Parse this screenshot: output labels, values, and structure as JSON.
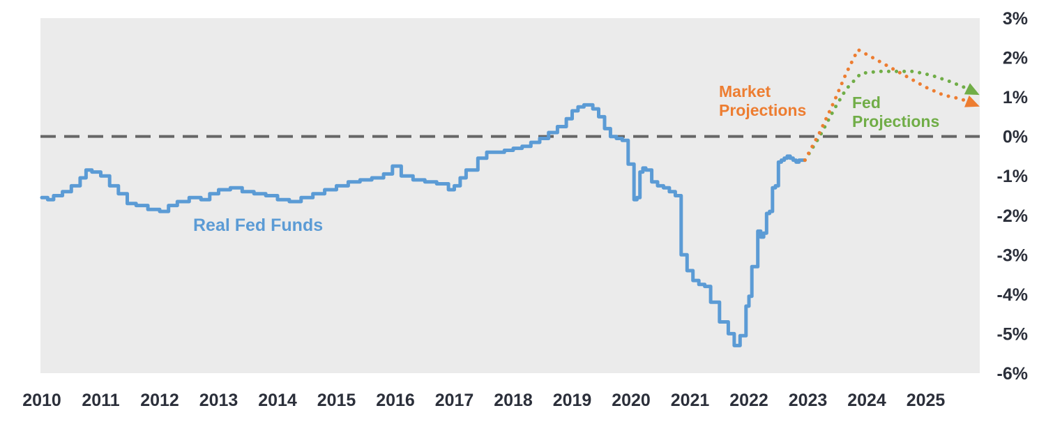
{
  "chart_data": {
    "type": "line",
    "title": "",
    "xlabel": "",
    "ylabel": "",
    "x_ticks": [
      "2010",
      "2011",
      "2012",
      "2013",
      "2014",
      "2015",
      "2016",
      "2017",
      "2018",
      "2019",
      "2020",
      "2021",
      "2022",
      "2023",
      "2024",
      "2025"
    ],
    "y_ticks": [
      "3%",
      "2%",
      "1%",
      "0%",
      "-1%",
      "-2%",
      "-3%",
      "-4%",
      "-5%",
      "-6%"
    ],
    "xlim": [
      2010.0,
      2025.9
    ],
    "ylim": [
      -6,
      3
    ],
    "background": "#ebebeb",
    "reference_line": {
      "y": 0,
      "style": "dashed",
      "color": "#666666"
    },
    "annotations": [
      {
        "text": "Real Fed Funds",
        "series": "real"
      },
      {
        "text": "Market",
        "series": "market"
      },
      {
        "text": "Projections",
        "series": "market"
      },
      {
        "text": "Fed",
        "series": "fed"
      },
      {
        "text": "Projections",
        "series": "fed"
      }
    ],
    "series": [
      {
        "key": "real",
        "color": "#5b9bd5",
        "style": "solid",
        "x": [
          2010.0,
          2010.1,
          2010.2,
          2010.35,
          2010.5,
          2010.65,
          2010.75,
          2010.85,
          2011.0,
          2011.15,
          2011.3,
          2011.45,
          2011.6,
          2011.8,
          2012.0,
          2012.15,
          2012.3,
          2012.5,
          2012.7,
          2012.85,
          2013.0,
          2013.2,
          2013.4,
          2013.6,
          2013.8,
          2014.0,
          2014.2,
          2014.4,
          2014.6,
          2014.8,
          2015.0,
          2015.2,
          2015.4,
          2015.6,
          2015.8,
          2015.95,
          2016.1,
          2016.3,
          2016.5,
          2016.7,
          2016.9,
          2017.0,
          2017.1,
          2017.2,
          2017.4,
          2017.55,
          2017.7,
          2017.85,
          2018.0,
          2018.15,
          2018.3,
          2018.45,
          2018.6,
          2018.75,
          2018.9,
          2019.0,
          2019.1,
          2019.2,
          2019.35,
          2019.45,
          2019.55,
          2019.65,
          2019.75,
          2019.85,
          2019.95,
          2020.05,
          2020.1,
          2020.15,
          2020.2,
          2020.25,
          2020.35,
          2020.45,
          2020.55,
          2020.65,
          2020.75,
          2020.85,
          2020.95,
          2021.05,
          2021.15,
          2021.25,
          2021.35,
          2021.5,
          2021.65,
          2021.75,
          2021.85,
          2021.95,
          2022.0,
          2022.05,
          2022.15,
          2022.2,
          2022.25,
          2022.3,
          2022.35,
          2022.4,
          2022.45,
          2022.5,
          2022.55,
          2022.6,
          2022.65,
          2022.7,
          2022.75,
          2022.8,
          2022.85,
          2022.95
        ],
        "y": [
          -1.55,
          -1.6,
          -1.5,
          -1.4,
          -1.25,
          -1.05,
          -0.85,
          -0.9,
          -1.0,
          -1.25,
          -1.45,
          -1.7,
          -1.75,
          -1.85,
          -1.9,
          -1.75,
          -1.65,
          -1.55,
          -1.6,
          -1.45,
          -1.35,
          -1.3,
          -1.4,
          -1.45,
          -1.5,
          -1.6,
          -1.65,
          -1.55,
          -1.45,
          -1.35,
          -1.25,
          -1.15,
          -1.1,
          -1.05,
          -0.95,
          -0.75,
          -1.0,
          -1.1,
          -1.15,
          -1.2,
          -1.35,
          -1.25,
          -1.05,
          -0.85,
          -0.55,
          -0.4,
          -0.4,
          -0.35,
          -0.3,
          -0.25,
          -0.15,
          -0.05,
          0.1,
          0.25,
          0.45,
          0.65,
          0.75,
          0.8,
          0.7,
          0.5,
          0.2,
          0.0,
          -0.05,
          -0.1,
          -0.7,
          -1.6,
          -1.55,
          -0.9,
          -0.8,
          -0.85,
          -1.15,
          -1.25,
          -1.3,
          -1.4,
          -1.5,
          -3.0,
          -3.4,
          -3.65,
          -3.75,
          -3.8,
          -4.2,
          -4.7,
          -5.0,
          -5.3,
          -5.05,
          -4.3,
          -4.05,
          -3.3,
          -2.4,
          -2.55,
          -2.45,
          -1.95,
          -1.9,
          -1.3,
          -1.25,
          -0.65,
          -0.6,
          -0.55,
          -0.5,
          -0.55,
          -0.6,
          -0.65,
          -0.6,
          -0.6
        ]
      },
      {
        "key": "market",
        "color": "#ed7d31",
        "style": "dotted",
        "x": [
          2022.95,
          2023.2,
          2023.45,
          2023.65,
          2023.85,
          2024.1,
          2024.4,
          2024.7,
          2025.0,
          2025.3,
          2025.6,
          2025.85
        ],
        "y": [
          -0.6,
          0.1,
          0.9,
          1.6,
          2.2,
          2.0,
          1.75,
          1.5,
          1.25,
          1.05,
          0.95,
          0.8
        ]
      },
      {
        "key": "fed",
        "color": "#70ad47",
        "style": "dotted",
        "x": [
          2022.95,
          2023.2,
          2023.45,
          2023.65,
          2023.9,
          2024.2,
          2024.5,
          2024.8,
          2025.1,
          2025.4,
          2025.65,
          2025.85
        ],
        "y": [
          -0.6,
          0.0,
          0.7,
          1.2,
          1.6,
          1.65,
          1.65,
          1.65,
          1.55,
          1.4,
          1.25,
          1.1
        ]
      }
    ]
  }
}
